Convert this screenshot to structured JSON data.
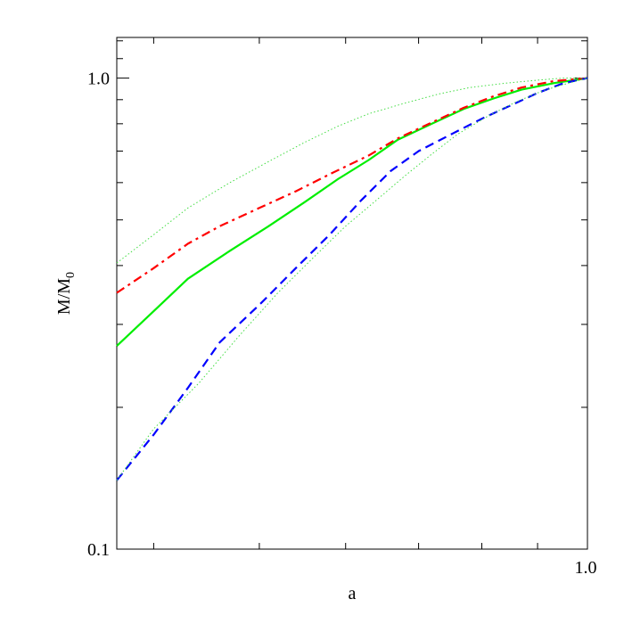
{
  "chart_data": {
    "type": "line",
    "xlabel": "a",
    "ylabel": "M/M",
    "ylabel_subscript": "0",
    "xscale": "log",
    "yscale": "log",
    "xlim": [
      0.37,
      1.0
    ],
    "ylim": [
      0.1,
      1.22
    ],
    "grid": false,
    "legend": "none",
    "y_tick_labels": [
      "0.1",
      "1.0"
    ],
    "y_tick_values": [
      0.1,
      1.0
    ],
    "x_tick_labels": [
      "1.0"
    ],
    "x_tick_values": [
      1.0
    ],
    "series": [
      {
        "color": "#00ee00",
        "style": "solid",
        "x": [
          0.37,
          0.4,
          0.43,
          0.47,
          0.51,
          0.55,
          0.59,
          0.63,
          0.67,
          0.72,
          0.77,
          0.82,
          0.87,
          0.93,
          1.0
        ],
        "y": [
          0.27,
          0.32,
          0.375,
          0.43,
          0.485,
          0.545,
          0.61,
          0.67,
          0.74,
          0.8,
          0.86,
          0.905,
          0.945,
          0.975,
          1.0
        ]
      },
      {
        "color": "#ff0000",
        "style": "dashdot",
        "x": [
          0.37,
          0.4,
          0.43,
          0.46,
          0.5,
          0.54,
          0.58,
          0.63,
          0.67,
          0.72,
          0.77,
          0.82,
          0.87,
          0.93,
          1.0
        ],
        "y": [
          0.35,
          0.395,
          0.445,
          0.485,
          0.53,
          0.575,
          0.625,
          0.685,
          0.745,
          0.805,
          0.865,
          0.915,
          0.955,
          0.985,
          1.0
        ]
      },
      {
        "color": "#0000ff",
        "style": "dashed",
        "x": [
          0.37,
          0.4,
          0.43,
          0.46,
          0.5,
          0.54,
          0.58,
          0.62,
          0.66,
          0.7,
          0.75,
          0.8,
          0.85,
          0.9,
          0.95,
          1.0
        ],
        "y": [
          0.14,
          0.175,
          0.22,
          0.275,
          0.33,
          0.395,
          0.465,
          0.55,
          0.635,
          0.7,
          0.76,
          0.82,
          0.875,
          0.93,
          0.975,
          1.0
        ]
      },
      {
        "color": "#44dd44",
        "style": "dotted",
        "x": [
          0.37,
          0.4,
          0.43,
          0.47,
          0.51,
          0.55,
          0.59,
          0.63,
          0.68,
          0.73,
          0.78,
          0.84,
          0.9,
          0.95,
          1.0
        ],
        "y": [
          0.405,
          0.465,
          0.53,
          0.6,
          0.665,
          0.73,
          0.79,
          0.84,
          0.885,
          0.925,
          0.955,
          0.975,
          0.99,
          1.0,
          1.0
        ]
      },
      {
        "color": "#44dd44",
        "style": "dotted",
        "x": [
          0.37,
          0.4,
          0.44,
          0.48,
          0.52,
          0.56,
          0.6,
          0.64,
          0.68,
          0.72,
          0.76,
          0.81,
          0.86,
          0.91,
          0.96,
          1.0
        ],
        "y": [
          0.14,
          0.18,
          0.225,
          0.285,
          0.35,
          0.415,
          0.485,
          0.55,
          0.62,
          0.69,
          0.76,
          0.83,
          0.89,
          0.94,
          0.975,
          1.0
        ]
      }
    ]
  }
}
